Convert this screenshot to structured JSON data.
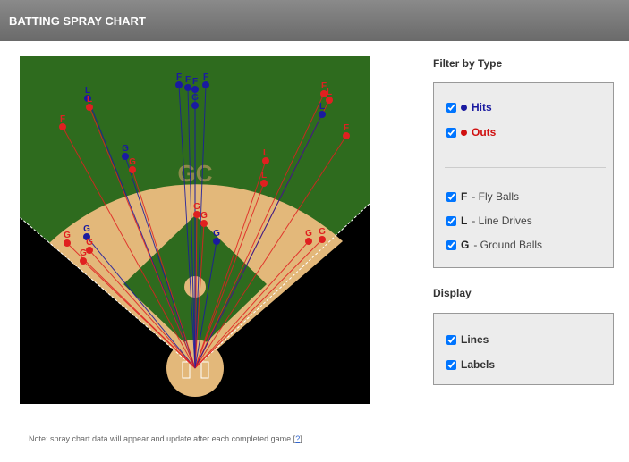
{
  "header": {
    "title": "BATTING SPRAY CHART"
  },
  "spray_chart": {
    "field_logo": "GC",
    "points": [
      {
        "label": "F",
        "color": "#e02020"
      },
      {
        "label": "L",
        "color": "#1a1aa0"
      },
      {
        "label": "L",
        "color": "#e02020"
      },
      {
        "label": "F",
        "color": "#1a1aa0"
      },
      {
        "label": "F",
        "color": "#1a1aa0"
      },
      {
        "label": "F",
        "color": "#1a1aa0"
      },
      {
        "label": "F",
        "color": "#1a1aa0"
      },
      {
        "label": "F",
        "color": "#e02020"
      },
      {
        "label": "L",
        "color": "#e02020"
      },
      {
        "label": "L",
        "color": "#1a1aa0"
      },
      {
        "label": "F",
        "color": "#e02020"
      },
      {
        "label": "G",
        "color": "#1a1aa0"
      },
      {
        "label": "G",
        "color": "#e02020"
      },
      {
        "label": "L",
        "color": "#e02020"
      },
      {
        "label": "L",
        "color": "#e02020"
      },
      {
        "label": "G",
        "color": "#e02020"
      },
      {
        "label": "G",
        "color": "#e02020"
      },
      {
        "label": "G",
        "color": "#1a1aa0"
      },
      {
        "label": "G",
        "color": "#e02020"
      },
      {
        "label": "G",
        "color": "#1a1aa0"
      },
      {
        "label": "G",
        "color": "#e02020"
      },
      {
        "label": "G",
        "color": "#e02020"
      },
      {
        "label": "G",
        "color": "#e02020"
      },
      {
        "label": "G",
        "color": "#e02020"
      },
      {
        "label": "G",
        "color": "#1a1aa0"
      }
    ]
  },
  "filter": {
    "title": "Filter by Type",
    "results": [
      {
        "label": "Hits",
        "color": "#1a1aa0",
        "checked": true
      },
      {
        "label": "Outs",
        "color": "#d01010",
        "checked": true
      }
    ],
    "types": [
      {
        "code": "F",
        "label": "- Fly Balls",
        "checked": true
      },
      {
        "code": "L",
        "label": "- Line Drives",
        "checked": true
      },
      {
        "code": "G",
        "label": "- Ground Balls",
        "checked": true
      }
    ]
  },
  "display": {
    "title": "Display",
    "options": [
      {
        "label": "Lines",
        "checked": true
      },
      {
        "label": "Labels",
        "checked": true
      }
    ]
  },
  "note": {
    "text": "Note: spray chart data will appear and update after each completed game [",
    "link": "?",
    "close": "]"
  }
}
